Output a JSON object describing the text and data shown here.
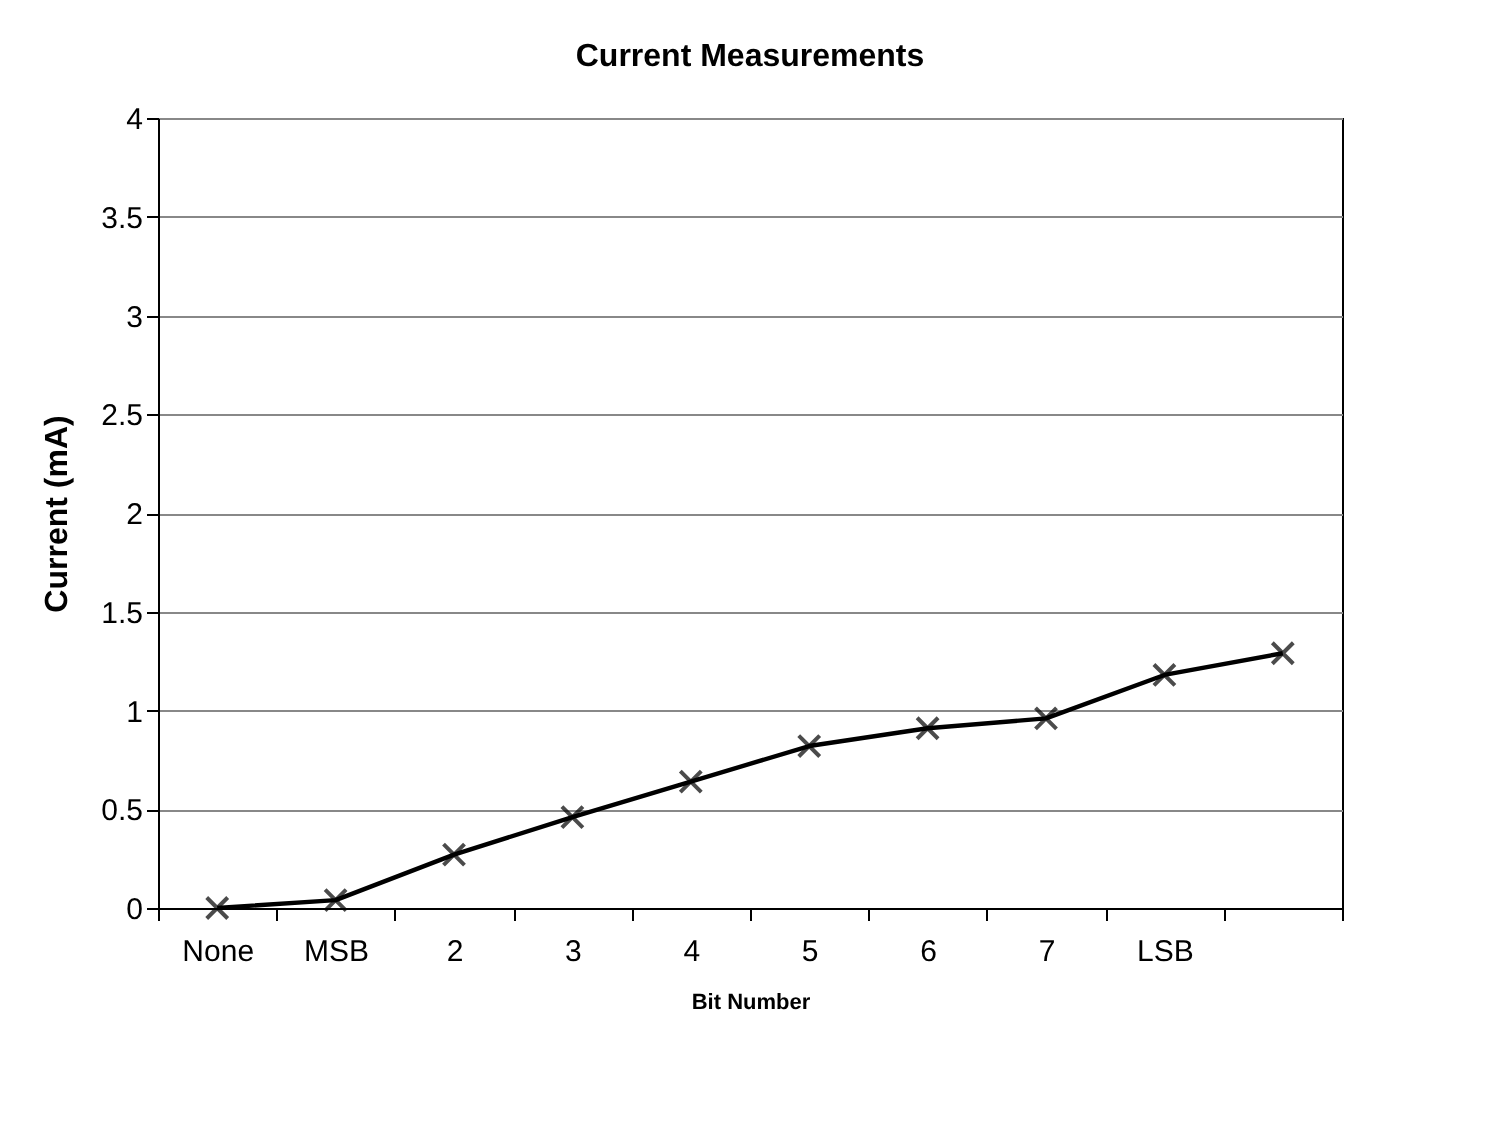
{
  "chart_data": {
    "type": "line",
    "title": "Current Measurements",
    "xlabel": "Bit Number",
    "ylabel": "Current (mA)",
    "categories": [
      "None",
      "MSB",
      "2",
      "3",
      "4",
      "5",
      "6",
      "7",
      "LSB",
      null
    ],
    "series": [
      {
        "color": "#000000",
        "values": [
          0,
          0.04,
          0.27,
          0.46,
          0.64,
          0.82,
          0.91,
          0.96,
          1.18,
          1.29
        ]
      }
    ],
    "ylim": [
      0,
      4
    ],
    "yticks": [
      0,
      0.5,
      1,
      1.5,
      2,
      2.5,
      3,
      3.5,
      4
    ],
    "grid": "y",
    "marker": "cross",
    "legend": false
  }
}
